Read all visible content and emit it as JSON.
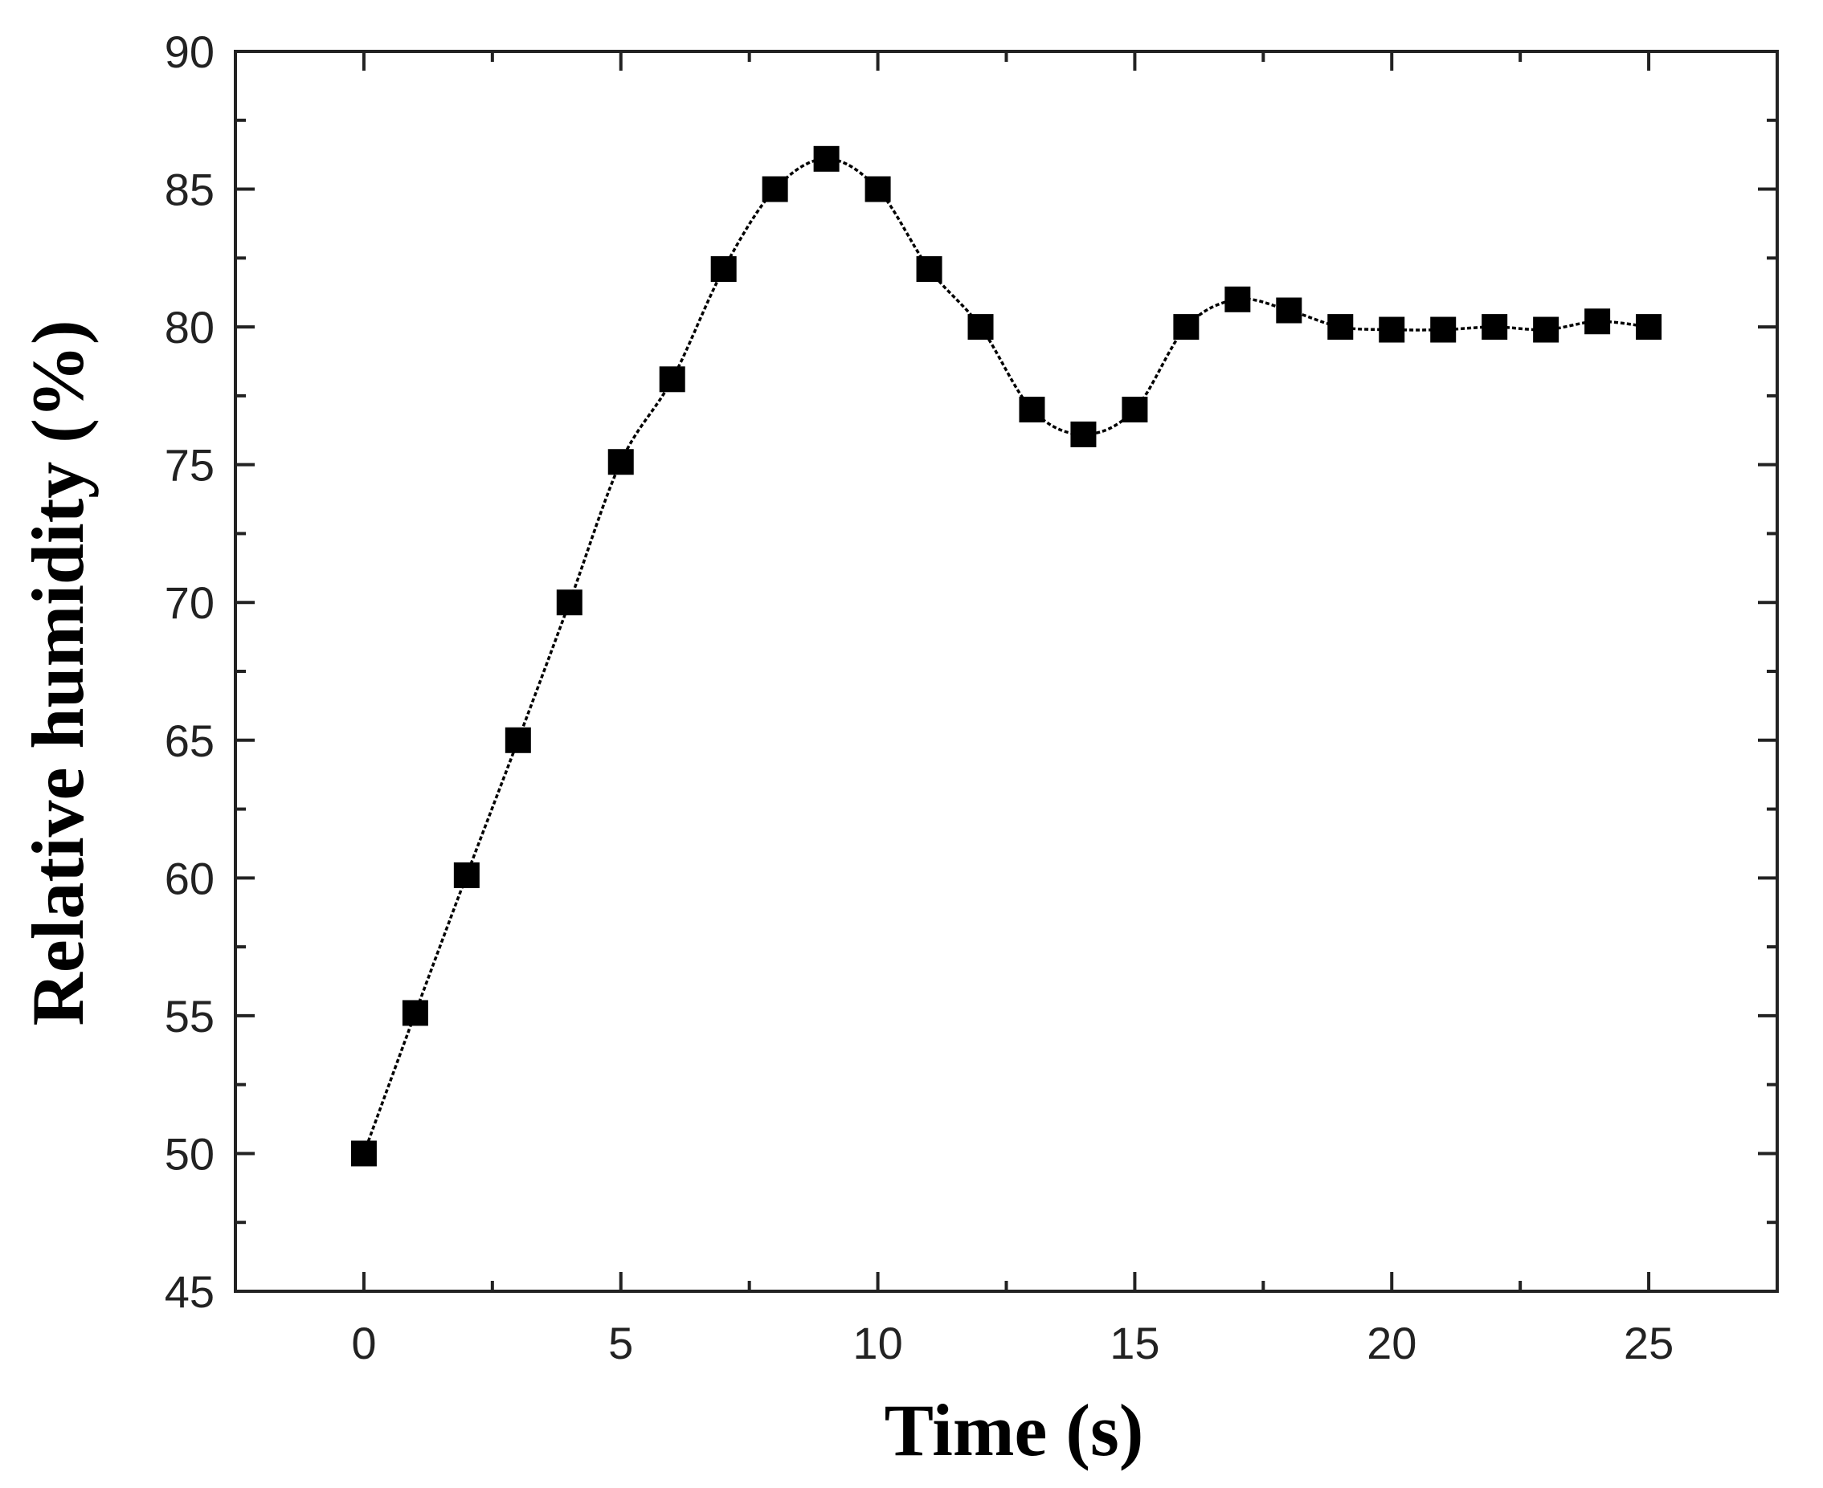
{
  "chart_data": {
    "type": "line",
    "title": "",
    "xlabel": "Time (s)",
    "ylabel": "Relative humidity (%)",
    "xlim": [
      -2.5,
      27.5
    ],
    "ylim": [
      45,
      90
    ],
    "xticks": [
      0,
      5,
      10,
      15,
      20,
      25
    ],
    "yticks": [
      45,
      50,
      55,
      60,
      65,
      70,
      75,
      80,
      85,
      90
    ],
    "xtick_labels": [
      "0",
      "5",
      "10",
      "15",
      "20",
      "25"
    ],
    "ytick_labels": [
      "45",
      "50",
      "55",
      "60",
      "65",
      "70",
      "75",
      "80",
      "85",
      "90"
    ],
    "grid": false,
    "series": [
      {
        "name": "Relative humidity",
        "marker": "square",
        "line_style": "dotted",
        "color": "#000000",
        "x": [
          0,
          1,
          2,
          3,
          4,
          5,
          6,
          7,
          8,
          9,
          10,
          11,
          12,
          13,
          14,
          15,
          16,
          17,
          18,
          19,
          20,
          21,
          22,
          23,
          24,
          25
        ],
        "y": [
          50,
          55.1,
          60.1,
          65,
          70,
          75.1,
          78.1,
          82.1,
          85,
          86.1,
          85,
          82.1,
          80,
          77,
          76.1,
          77,
          80,
          81,
          80.6,
          80,
          79.9,
          79.9,
          80,
          79.9,
          80.2,
          80
        ]
      }
    ]
  }
}
